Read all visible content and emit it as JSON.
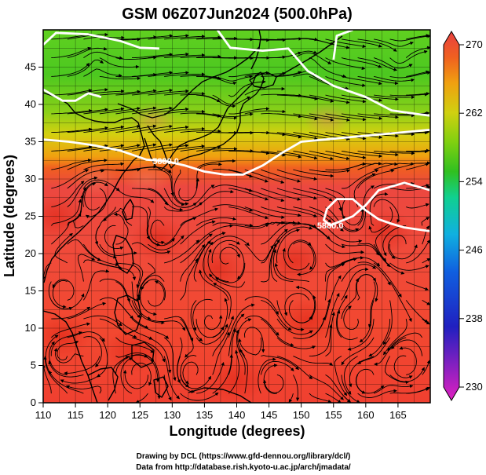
{
  "title": "GSM 06Z07Jun2024 (500.0hPa)",
  "credits": {
    "line1": "Drawing by DCL (https://www.gfd-dennou.org/library/dcl/)",
    "line2": "Data from http://database.rish.kyoto-u.ac.jp/arch/jmadata/"
  },
  "chart_data": {
    "type": "heatmap",
    "title": "GSM 06Z07Jun2024 (500.0hPa)",
    "xlabel": "Longitude (degrees)",
    "ylabel": "Latitude  (degrees)",
    "xlim": [
      110,
      170
    ],
    "ylim": [
      0,
      50
    ],
    "x_ticks": [
      "110",
      "115",
      "120",
      "125",
      "130",
      "135",
      "140",
      "145",
      "150",
      "155",
      "160",
      "165"
    ],
    "y_ticks": [
      "0",
      "5",
      "10",
      "15",
      "20",
      "25",
      "30",
      "35",
      "40",
      "45"
    ],
    "grid": true,
    "colorbar": {
      "min": 230,
      "max": 270,
      "ticks": [
        "230",
        "238",
        "246",
        "254",
        "262",
        "270"
      ],
      "colors": [
        "#e020c0",
        "#8020c0",
        "#2020c0",
        "#1060e0",
        "#10b0e0",
        "#10d090",
        "#30c020",
        "#80d010",
        "#d0d010",
        "#f0a010",
        "#f06020",
        "#e84040"
      ]
    },
    "contours": [
      {
        "label": "5880.0",
        "points": [
          [
            110,
            35.3
          ],
          [
            114,
            35
          ],
          [
            118,
            34.5
          ],
          [
            122,
            33.8
          ],
          [
            126,
            32.6
          ],
          [
            129,
            32.4
          ],
          [
            132,
            31.8
          ],
          [
            135,
            31
          ],
          [
            138,
            30.6
          ],
          [
            141,
            30.6
          ],
          [
            144,
            31.8
          ],
          [
            147,
            33.5
          ],
          [
            150,
            35
          ],
          [
            155,
            35.4
          ],
          [
            160,
            35.8
          ],
          [
            165,
            36.2
          ],
          [
            170,
            36.6
          ]
        ]
      },
      {
        "label": "5880.0",
        "points": [
          [
            170,
            28.5
          ],
          [
            166,
            29.5
          ],
          [
            162,
            28.5
          ],
          [
            160,
            26.5
          ],
          [
            158,
            25
          ],
          [
            156,
            24.3
          ],
          [
            154.5,
            23.8
          ],
          [
            153.5,
            24.5
          ],
          [
            154,
            26
          ],
          [
            155.5,
            27.3
          ],
          [
            158,
            27.3
          ],
          [
            160,
            25.8
          ],
          [
            162,
            24.6
          ],
          [
            164,
            24
          ],
          [
            166,
            23.5
          ],
          [
            170,
            23
          ]
        ]
      },
      {
        "label": "",
        "points": [
          [
            110,
            42
          ],
          [
            113,
            40.5
          ],
          [
            115,
            40.5
          ],
          [
            117,
            41.5
          ],
          [
            119,
            41
          ]
        ]
      },
      {
        "label": "",
        "points": [
          [
            110,
            48
          ],
          [
            112,
            49.6
          ],
          [
            117,
            49.4
          ],
          [
            122,
            48.5
          ],
          [
            125,
            47.6
          ],
          [
            128,
            47.5
          ]
        ]
      },
      {
        "label": "",
        "points": [
          [
            137,
            50
          ],
          [
            139,
            47.6
          ],
          [
            144,
            47.2
          ],
          [
            148,
            47.5
          ],
          [
            151,
            44.5
          ],
          [
            155,
            42.5
          ],
          [
            160,
            41
          ],
          [
            164,
            39.2
          ],
          [
            168,
            38.7
          ],
          [
            170,
            38.5
          ]
        ]
      },
      {
        "label": "",
        "points": [
          [
            155,
            46
          ],
          [
            155.5,
            49.2
          ],
          [
            158,
            50
          ]
        ]
      }
    ],
    "vortex_centers": [
      [
        139,
        41
      ],
      [
        118,
        46
      ],
      [
        165,
        46
      ],
      [
        151,
        46
      ],
      [
        128,
        23
      ],
      [
        138.5,
        19.5
      ],
      [
        121,
        22.5
      ],
      [
        149.5,
        20
      ],
      [
        158,
        25
      ],
      [
        162,
        26
      ],
      [
        165,
        21
      ],
      [
        113,
        6.5
      ],
      [
        113.5,
        14.5
      ],
      [
        117,
        7.5
      ],
      [
        136,
        11
      ],
      [
        142,
        9
      ],
      [
        150,
        12.5
      ],
      [
        158,
        11
      ],
      [
        166,
        5
      ],
      [
        125,
        4
      ],
      [
        133,
        4
      ],
      [
        146,
        3
      ],
      [
        160,
        3
      ],
      [
        118,
        28
      ],
      [
        132,
        28
      ],
      [
        160,
        16
      ],
      [
        127,
        14
      ]
    ],
    "heat_spots": [
      [
        113,
        9
      ],
      [
        112,
        25
      ],
      [
        128,
        22
      ],
      [
        137,
        18
      ],
      [
        149,
        19
      ],
      [
        151,
        11
      ],
      [
        163,
        23
      ],
      [
        124,
        7
      ],
      [
        140,
        3
      ]
    ],
    "cool_spots": [
      [
        154,
        38
      ],
      [
        127,
        38
      ],
      [
        118,
        30
      ],
      [
        126,
        30
      ]
    ]
  }
}
